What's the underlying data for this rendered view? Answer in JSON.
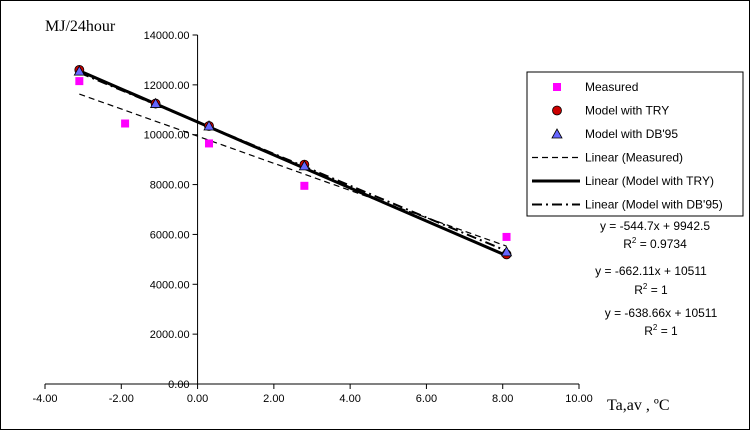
{
  "chart_data": {
    "type": "scatter",
    "ylabel": "MJ/24hour",
    "xlabel": "Ta,av  , ºC",
    "xlim": [
      -4,
      10
    ],
    "ylim": [
      0,
      14000
    ],
    "x_ticks": [
      -4,
      -2,
      0,
      2,
      4,
      6,
      8,
      10
    ],
    "x_tick_labels": [
      "-4.00",
      "-2.00",
      "0.00",
      "2.00",
      "4.00",
      "6.00",
      "8.00",
      "10.00"
    ],
    "y_ticks": [
      0,
      2000,
      4000,
      6000,
      8000,
      10000,
      12000,
      14000
    ],
    "y_tick_labels": [
      "0.00",
      "2000.00",
      "4000.00",
      "6000.00",
      "8000.00",
      "10000.00",
      "12000.00",
      "14000.00"
    ],
    "grid": false,
    "legend_position": "right",
    "series": [
      {
        "name": "Measured",
        "marker": "square",
        "color": "#ff00ff",
        "x": [
          -3.1,
          -1.9,
          0.3,
          2.8,
          8.1
        ],
        "y": [
          12150,
          10450,
          9650,
          7950,
          5900
        ]
      },
      {
        "name": "Model with TRY",
        "marker": "circle",
        "color": "#cc0000",
        "x": [
          -3.1,
          -1.1,
          0.3,
          2.8,
          8.1
        ],
        "y": [
          12600,
          11250,
          10350,
          8800,
          5200
        ]
      },
      {
        "name": "Model with DB'95",
        "marker": "triangle",
        "color": "#6666ff",
        "x": [
          -3.1,
          -1.1,
          0.3,
          2.8,
          8.1
        ],
        "y": [
          12550,
          11250,
          10350,
          8750,
          5300
        ]
      }
    ],
    "trendlines": [
      {
        "name": "Linear (Measured)",
        "style": "dashed",
        "slope": -544.7,
        "intercept": 9942.5,
        "x_range": [
          -3.1,
          8.1
        ]
      },
      {
        "name": "Linear (Model with TRY)",
        "style": "solid",
        "slope": -662.11,
        "intercept": 10511,
        "x_range": [
          -3.1,
          8.1
        ]
      },
      {
        "name": "Linear (Model with DB'95)",
        "style": "dashdot",
        "slope": -638.66,
        "intercept": 10511,
        "x_range": [
          -3.1,
          8.1
        ]
      }
    ],
    "annotations": [
      {
        "eq": "y = -544.7x + 9942.5",
        "r2_prefix": "R",
        "r2_sup": "2",
        "r2_value": " = 0.9734"
      },
      {
        "eq": "y = -662.11x + 10511",
        "r2_prefix": "R",
        "r2_sup": "2",
        "r2_value": " = 1"
      },
      {
        "eq": "y = -638.66x + 10511",
        "r2_prefix": "R",
        "r2_sup": "2",
        "r2_value": " = 1"
      }
    ]
  }
}
